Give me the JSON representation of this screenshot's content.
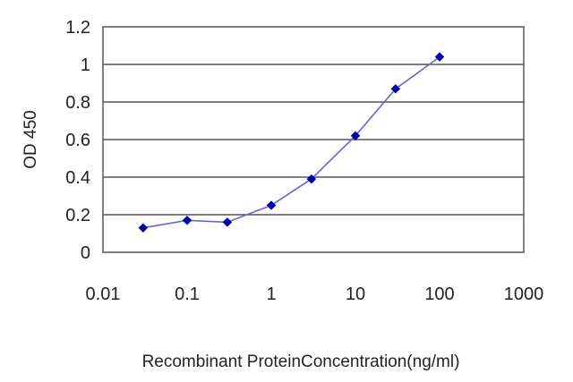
{
  "chart_data": {
    "type": "line",
    "title": "",
    "xlabel": "Recombinant ProteinConcentration(ng/ml)",
    "ylabel": "OD 450",
    "x_scale": "log",
    "xlim": [
      0.01,
      1000
    ],
    "ylim": [
      0,
      1.2
    ],
    "x_ticks": [
      0.01,
      0.1,
      1,
      10,
      100,
      1000
    ],
    "x_tick_labels": [
      "0.01",
      "0.1",
      "1",
      "10",
      "100",
      "1000"
    ],
    "y_ticks": [
      0,
      0.2,
      0.4,
      0.6,
      0.8,
      1,
      1.2
    ],
    "y_tick_labels": [
      "0",
      "0.2",
      "0.4",
      "0.6",
      "0.8",
      "1",
      "1.2"
    ],
    "grid": "horizontal",
    "legend": "none",
    "series": [
      {
        "color": "#0000aa",
        "line_color": "#6666cc",
        "marker": "diamond",
        "x": [
          0.03,
          0.1,
          0.3,
          1,
          3,
          10,
          30,
          100
        ],
        "y": [
          0.13,
          0.17,
          0.16,
          0.25,
          0.39,
          0.62,
          0.87,
          1.04
        ]
      }
    ]
  }
}
